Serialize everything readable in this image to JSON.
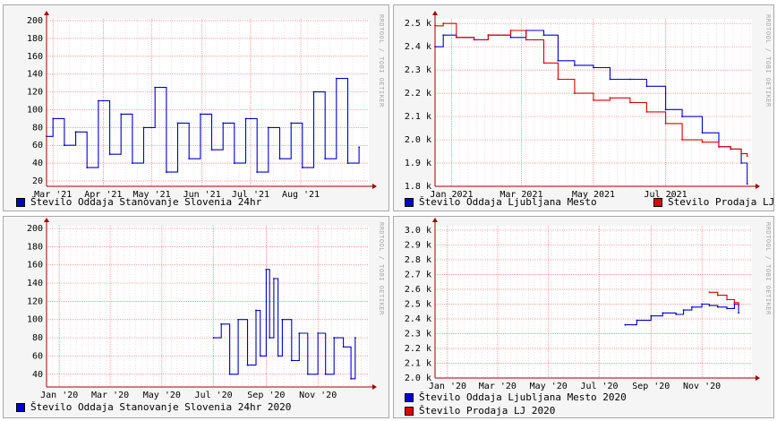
{
  "watermark": "RRDTOOL / TOBI OETIKER",
  "colors": {
    "blue": "#0000cc",
    "red": "#dd0000",
    "grid_major": "#f08080",
    "grid_minor": "#e8c8c8",
    "axis": "#a00000",
    "plot_bg": "#ffffff",
    "panel_bg": "#f5f5f5"
  },
  "chart_data": [
    {
      "type": "line",
      "title": "",
      "yticks": [
        "200",
        "180",
        "160",
        "140",
        "120",
        "100",
        "80",
        "60",
        "40",
        "20"
      ],
      "xticks": [
        "Mar '21",
        "Apr '21",
        "May '21",
        "Jun '21",
        "Jul '21",
        "Aug '21"
      ],
      "ylim": [
        14,
        202
      ],
      "xlim": [
        "2021-02-25",
        "2021-09-12"
      ],
      "series": [
        {
          "name": "Število Oddaja Stanovanje Slovenia 24hr",
          "color": "#0000cc",
          "x": [
            "2021-02-25",
            "2021-03-01",
            "2021-03-08",
            "2021-03-15",
            "2021-03-22",
            "2021-03-29",
            "2021-04-05",
            "2021-04-12",
            "2021-04-19",
            "2021-04-26",
            "2021-05-03",
            "2021-05-10",
            "2021-05-17",
            "2021-05-24",
            "2021-05-31",
            "2021-06-07",
            "2021-06-14",
            "2021-06-21",
            "2021-06-28",
            "2021-07-05",
            "2021-07-12",
            "2021-07-19",
            "2021-07-26",
            "2021-08-02",
            "2021-08-09",
            "2021-08-16",
            "2021-08-23",
            "2021-08-30",
            "2021-09-06"
          ],
          "y": [
            70,
            90,
            60,
            75,
            35,
            110,
            50,
            95,
            40,
            80,
            125,
            30,
            85,
            45,
            95,
            55,
            85,
            40,
            90,
            30,
            80,
            45,
            85,
            35,
            120,
            45,
            135,
            40,
            58
          ]
        }
      ]
    },
    {
      "type": "line",
      "title": "",
      "yticks": [
        "2.5 k",
        "2.4 k",
        "2.3 k",
        "2.2 k",
        "2.1 k",
        "2.0 k",
        "1.9 k",
        "1.8 k"
      ],
      "xticks": [
        "Jan 2021",
        "Mar 2021",
        "May 2021",
        "Jul 2021"
      ],
      "ylim": [
        1800,
        2520
      ],
      "xlim": [
        "2020-12-18",
        "2021-09-12"
      ],
      "series": [
        {
          "name": "Število Oddaja Ljubljana Mesto",
          "color": "#0000cc",
          "x": [
            "2020-12-18",
            "2020-12-25",
            "2021-01-05",
            "2021-01-20",
            "2021-02-01",
            "2021-02-20",
            "2021-03-05",
            "2021-03-20",
            "2021-04-01",
            "2021-04-15",
            "2021-05-01",
            "2021-05-15",
            "2021-06-01",
            "2021-06-15",
            "2021-07-01",
            "2021-07-15",
            "2021-08-01",
            "2021-08-15",
            "2021-08-25",
            "2021-09-03",
            "2021-09-08"
          ],
          "y": [
            2400,
            2450,
            2440,
            2430,
            2450,
            2440,
            2470,
            2450,
            2340,
            2320,
            2310,
            2260,
            2260,
            2230,
            2130,
            2100,
            2030,
            1970,
            1960,
            1900,
            1810
          ]
        },
        {
          "name": "Število Prodaja LJ",
          "color": "#dd0000",
          "x": [
            "2020-12-18",
            "2020-12-25",
            "2021-01-05",
            "2021-01-20",
            "2021-02-01",
            "2021-02-20",
            "2021-03-05",
            "2021-03-20",
            "2021-04-01",
            "2021-04-15",
            "2021-05-01",
            "2021-05-15",
            "2021-06-01",
            "2021-06-15",
            "2021-07-01",
            "2021-07-15",
            "2021-08-01",
            "2021-08-15",
            "2021-08-25",
            "2021-09-03",
            "2021-09-08"
          ],
          "y": [
            2490,
            2500,
            2440,
            2430,
            2450,
            2470,
            2430,
            2330,
            2260,
            2200,
            2170,
            2180,
            2160,
            2120,
            2070,
            2000,
            1990,
            1970,
            1960,
            1940,
            1930
          ]
        }
      ]
    },
    {
      "type": "line",
      "title": "",
      "yticks": [
        "200",
        "180",
        "160",
        "140",
        "120",
        "100",
        "80",
        "60",
        "40"
      ],
      "xticks": [
        "Jan '20",
        "Mar '20",
        "May '20",
        "Jul '20",
        "Sep '20",
        "Nov '20"
      ],
      "ylim": [
        26,
        203
      ],
      "xlim": [
        "2019-12-17",
        "2020-12-31"
      ],
      "series": [
        {
          "name": "Število Oddaja Stanovanje Slovenia 24hr 2020",
          "color": "#0000cc",
          "x": [
            "2020-07-01",
            "2020-07-10",
            "2020-07-20",
            "2020-07-30",
            "2020-08-10",
            "2020-08-20",
            "2020-08-25",
            "2020-09-01",
            "2020-09-05",
            "2020-09-10",
            "2020-09-15",
            "2020-09-20",
            "2020-10-01",
            "2020-10-10",
            "2020-10-20",
            "2020-11-01",
            "2020-11-10",
            "2020-11-20",
            "2020-12-01",
            "2020-12-10",
            "2020-12-15"
          ],
          "y": [
            80,
            95,
            40,
            100,
            50,
            110,
            60,
            155,
            80,
            145,
            60,
            100,
            55,
            85,
            40,
            85,
            40,
            80,
            70,
            35,
            80
          ]
        }
      ]
    },
    {
      "type": "line",
      "title": "",
      "yticks": [
        "3.0 k",
        "2.9 k",
        "2.8 k",
        "2.7 k",
        "2.6 k",
        "2.5 k",
        "2.4 k",
        "2.3 k",
        "2.2 k",
        "2.1 k",
        "2.0 k"
      ],
      "xticks": [
        "Jan '20",
        "Mar '20",
        "May '20",
        "Jul '20",
        "Sep '20",
        "Nov '20"
      ],
      "ylim": [
        2000,
        3030
      ],
      "xlim": [
        "2019-12-17",
        "2020-12-31"
      ],
      "series": [
        {
          "name": "Število Oddaja Ljubljana Mesto 2020",
          "color": "#0000cc",
          "x": [
            "2020-08-01",
            "2020-08-15",
            "2020-09-01",
            "2020-09-15",
            "2020-10-01",
            "2020-10-10",
            "2020-10-20",
            "2020-11-01",
            "2020-11-10",
            "2020-11-20",
            "2020-12-01",
            "2020-12-10",
            "2020-12-15"
          ],
          "y": [
            2360,
            2390,
            2420,
            2440,
            2430,
            2460,
            2480,
            2500,
            2490,
            2480,
            2470,
            2500,
            2440
          ]
        },
        {
          "name": "Število Prodaja LJ 2020",
          "color": "#dd0000",
          "x": [
            "2020-11-10",
            "2020-11-20",
            "2020-12-01",
            "2020-12-10",
            "2020-12-15"
          ],
          "y": [
            2580,
            2560,
            2530,
            2510,
            2490
          ]
        }
      ]
    }
  ]
}
